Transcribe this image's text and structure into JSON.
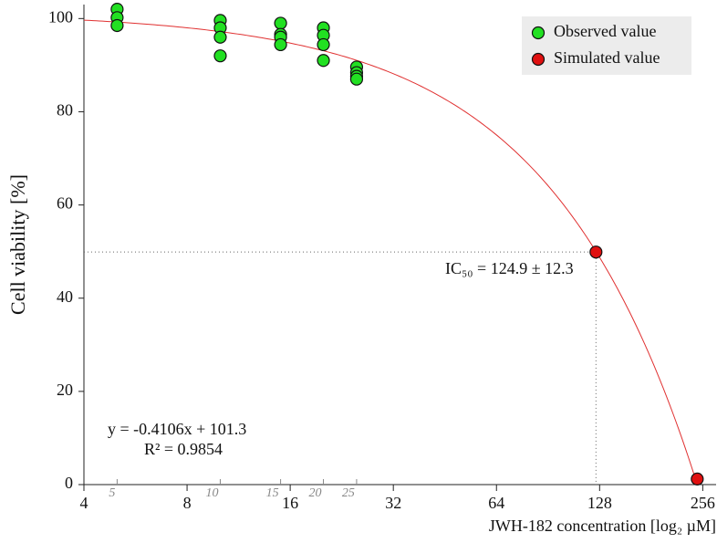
{
  "chart_data": {
    "type": "scatter",
    "y_label": "Cell viability [%]",
    "x_label": "JWH-182 concentration [log₂ µM]",
    "log_x": true,
    "xlim": [
      4,
      280
    ],
    "xticks": [
      4,
      8,
      16,
      32,
      64,
      128,
      256
    ],
    "minor_xticks": [
      5,
      10,
      15,
      20,
      25
    ],
    "ylim": [
      0,
      103
    ],
    "yticks": [
      0,
      20,
      40,
      60,
      80,
      100
    ],
    "legend": "upper right",
    "series": [
      {
        "name": "Observed value",
        "color": "#22e022",
        "x": [
          5,
          5,
          5,
          10,
          10,
          10,
          10,
          15,
          15,
          15,
          15,
          20,
          20,
          20,
          20,
          25,
          25,
          25,
          25
        ],
        "values": [
          102,
          100.2,
          98.5,
          99.6,
          98,
          96,
          92,
          99,
          96.6,
          96,
          94.4,
          98,
          96.4,
          94.4,
          91,
          89.6,
          88.4,
          87.6,
          87
        ]
      },
      {
        "name": "Simulated value",
        "color": "#e01010",
        "x": [
          124.9,
          246.7
        ],
        "values": [
          49.9,
          1.2
        ]
      }
    ],
    "fit": {
      "slope": -0.4106,
      "intercept": 101.3,
      "color": "#e03030"
    },
    "annotations": {
      "equation": "y = -0.4106x + 101.3",
      "r2": "R² = 0.9854",
      "ic50": "IC₅₀ = 124.9 ± 12.3"
    }
  }
}
